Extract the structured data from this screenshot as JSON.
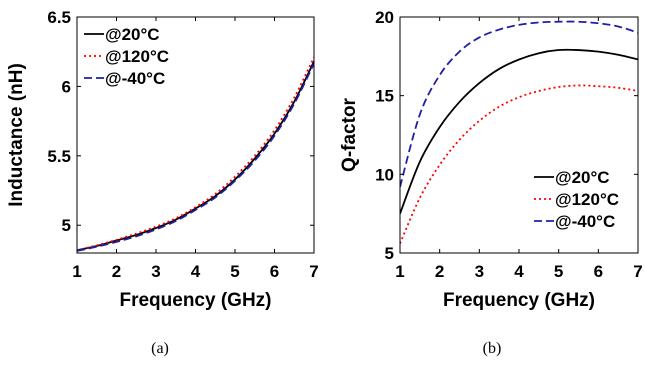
{
  "chart_data": [
    {
      "type": "line",
      "caption": "(a)",
      "xlabel": "Frequency (GHz)",
      "ylabel": "Inductance (nH)",
      "xlim": [
        1,
        7
      ],
      "ylim": [
        4.8,
        6.5
      ],
      "xticks": [
        1,
        2,
        3,
        4,
        5,
        6,
        7
      ],
      "yticks": [
        5,
        5.5,
        6,
        6.5
      ],
      "ytick_labels": [
        "5",
        "5.5",
        "6",
        "6.5"
      ],
      "legend_position": "top-left",
      "grid": false,
      "x": [
        1,
        1.5,
        2,
        2.5,
        3,
        3.5,
        4,
        4.5,
        5,
        5.5,
        6,
        6.5,
        7
      ],
      "series": [
        {
          "name": "@20°C",
          "color": "#000000",
          "dash": "solid",
          "values": [
            4.82,
            4.85,
            4.89,
            4.93,
            4.98,
            5.04,
            5.12,
            5.21,
            5.33,
            5.48,
            5.66,
            5.89,
            6.18
          ]
        },
        {
          "name": "@120°C",
          "color": "#ff0000",
          "dash": "dotted",
          "values": [
            4.82,
            4.855,
            4.895,
            4.94,
            4.99,
            5.05,
            5.13,
            5.225,
            5.35,
            5.5,
            5.685,
            5.92,
            6.21
          ]
        },
        {
          "name": "@-40°C",
          "color": "#1f1fa8",
          "dash": "dashed",
          "values": [
            4.815,
            4.845,
            4.88,
            4.92,
            4.97,
            5.03,
            5.11,
            5.2,
            5.32,
            5.465,
            5.645,
            5.875,
            6.165
          ]
        }
      ]
    },
    {
      "type": "line",
      "caption": "(b)",
      "xlabel": "Frequency (GHz)",
      "ylabel": "Q-factor",
      "xlim": [
        1,
        7
      ],
      "ylim": [
        5,
        20
      ],
      "xticks": [
        1,
        2,
        3,
        4,
        5,
        6,
        7
      ],
      "yticks": [
        5,
        10,
        15,
        20
      ],
      "ytick_labels": [
        "5",
        "10",
        "15",
        "20"
      ],
      "legend_position": "bottom-right",
      "grid": false,
      "x": [
        1,
        1.5,
        2,
        2.5,
        3,
        3.5,
        4,
        4.5,
        5,
        5.5,
        6,
        6.5,
        7
      ],
      "series": [
        {
          "name": "@20°C",
          "color": "#000000",
          "dash": "solid",
          "values": [
            7.5,
            10.8,
            13.0,
            14.6,
            15.8,
            16.7,
            17.3,
            17.7,
            17.9,
            17.9,
            17.8,
            17.6,
            17.3
          ]
        },
        {
          "name": "@120°C",
          "color": "#ff0000",
          "dash": "dotted",
          "values": [
            5.6,
            8.5,
            10.6,
            12.2,
            13.4,
            14.3,
            14.9,
            15.3,
            15.55,
            15.65,
            15.6,
            15.5,
            15.3
          ]
        },
        {
          "name": "@-40°C",
          "color": "#1f1fa8",
          "dash": "dashed",
          "values": [
            9.2,
            13.8,
            16.3,
            17.8,
            18.7,
            19.2,
            19.5,
            19.65,
            19.7,
            19.7,
            19.6,
            19.4,
            19.0
          ]
        }
      ]
    }
  ]
}
